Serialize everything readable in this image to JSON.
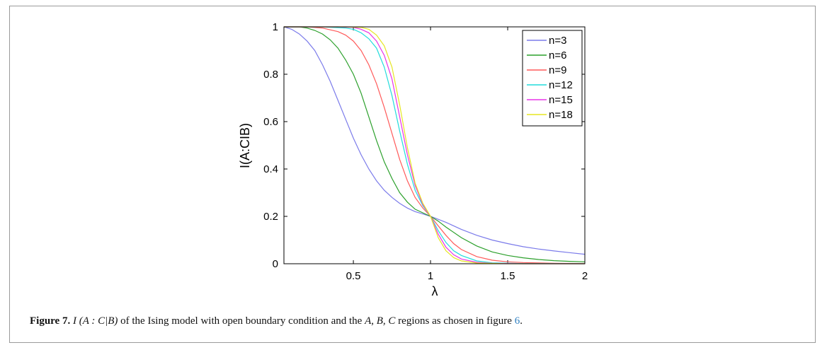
{
  "figure": {
    "caption_label": "Figure 7.",
    "caption_math": "I (A : C|B)",
    "caption_text": " of the Ising model with open boundary condition and the ",
    "caption_regions": "A, B, C",
    "caption_text2": " regions as chosen in figure ",
    "caption_ref": "6",
    "caption_end": "."
  },
  "chart_data": {
    "type": "line",
    "xlabel": "λ",
    "ylabel": "I(A:CIB)",
    "xlim": [
      0.05,
      2
    ],
    "ylim": [
      0,
      1
    ],
    "xticks": [
      0.5,
      1,
      1.5,
      2
    ],
    "xtick_labels": [
      "0.5",
      "1",
      "1.5",
      "2"
    ],
    "yticks": [
      0,
      0.2,
      0.4,
      0.6,
      0.8,
      1
    ],
    "ytick_labels": [
      "0",
      "0.2",
      "0.4",
      "0.6",
      "0.8",
      "1"
    ],
    "grid": false,
    "legend_position": "top-right",
    "series": [
      {
        "name": "n=3",
        "color": "#7b7bea",
        "x": [
          0.05,
          0.1,
          0.15,
          0.2,
          0.25,
          0.3,
          0.35,
          0.4,
          0.45,
          0.5,
          0.55,
          0.6,
          0.65,
          0.7,
          0.75,
          0.8,
          0.85,
          0.9,
          0.95,
          1.0,
          1.1,
          1.2,
          1.3,
          1.4,
          1.5,
          1.6,
          1.7,
          1.8,
          1.9,
          2.0
        ],
        "y": [
          1.0,
          0.99,
          0.97,
          0.94,
          0.9,
          0.84,
          0.77,
          0.69,
          0.61,
          0.53,
          0.46,
          0.4,
          0.35,
          0.31,
          0.28,
          0.255,
          0.235,
          0.22,
          0.21,
          0.2,
          0.175,
          0.145,
          0.12,
          0.1,
          0.085,
          0.072,
          0.062,
          0.054,
          0.047,
          0.04
        ]
      },
      {
        "name": "n=6",
        "color": "#2ca02c",
        "x": [
          0.05,
          0.1,
          0.15,
          0.2,
          0.25,
          0.3,
          0.35,
          0.4,
          0.45,
          0.5,
          0.55,
          0.6,
          0.65,
          0.7,
          0.75,
          0.8,
          0.85,
          0.9,
          0.95,
          1.0,
          1.05,
          1.1,
          1.2,
          1.3,
          1.4,
          1.5,
          1.6,
          1.7,
          1.8,
          1.9,
          2.0
        ],
        "y": [
          1.0,
          1.0,
          1.0,
          0.995,
          0.985,
          0.97,
          0.945,
          0.91,
          0.86,
          0.8,
          0.72,
          0.62,
          0.52,
          0.43,
          0.36,
          0.3,
          0.26,
          0.23,
          0.215,
          0.2,
          0.18,
          0.155,
          0.11,
          0.075,
          0.05,
          0.035,
          0.025,
          0.018,
          0.013,
          0.01,
          0.008
        ]
      },
      {
        "name": "n=9",
        "color": "#ff5a5a",
        "x": [
          0.05,
          0.2,
          0.3,
          0.4,
          0.45,
          0.5,
          0.55,
          0.6,
          0.65,
          0.7,
          0.75,
          0.8,
          0.85,
          0.9,
          0.95,
          1.0,
          1.05,
          1.1,
          1.15,
          1.2,
          1.3,
          1.4,
          1.5,
          1.6,
          1.8,
          2.0
        ],
        "y": [
          1.0,
          1.0,
          0.995,
          0.98,
          0.965,
          0.94,
          0.9,
          0.84,
          0.76,
          0.66,
          0.55,
          0.44,
          0.35,
          0.28,
          0.235,
          0.2,
          0.16,
          0.12,
          0.085,
          0.06,
          0.03,
          0.015,
          0.008,
          0.005,
          0.002,
          0.001
        ]
      },
      {
        "name": "n=12",
        "color": "#22dcdc",
        "x": [
          0.05,
          0.3,
          0.45,
          0.5,
          0.55,
          0.6,
          0.65,
          0.7,
          0.75,
          0.8,
          0.85,
          0.9,
          0.95,
          1.0,
          1.05,
          1.1,
          1.15,
          1.2,
          1.3,
          1.4,
          1.6,
          2.0
        ],
        "y": [
          1.0,
          1.0,
          0.995,
          0.99,
          0.975,
          0.95,
          0.91,
          0.83,
          0.71,
          0.56,
          0.42,
          0.31,
          0.245,
          0.2,
          0.14,
          0.09,
          0.055,
          0.035,
          0.012,
          0.004,
          0.001,
          0.0
        ]
      },
      {
        "name": "n=15",
        "color": "#e833e8",
        "x": [
          0.05,
          0.4,
          0.5,
          0.55,
          0.6,
          0.65,
          0.7,
          0.75,
          0.8,
          0.85,
          0.9,
          0.95,
          1.0,
          1.05,
          1.1,
          1.15,
          1.2,
          1.3,
          1.4,
          1.6,
          2.0
        ],
        "y": [
          1.0,
          1.0,
          0.998,
          0.99,
          0.975,
          0.94,
          0.88,
          0.78,
          0.62,
          0.46,
          0.33,
          0.25,
          0.2,
          0.125,
          0.07,
          0.038,
          0.02,
          0.006,
          0.002,
          0.0,
          0.0
        ]
      },
      {
        "name": "n=18",
        "color": "#e6e622",
        "x": [
          0.05,
          0.45,
          0.55,
          0.6,
          0.65,
          0.7,
          0.75,
          0.8,
          0.85,
          0.9,
          0.95,
          1.0,
          1.05,
          1.1,
          1.15,
          1.2,
          1.3,
          1.5,
          2.0
        ],
        "y": [
          1.0,
          1.0,
          0.998,
          0.99,
          0.965,
          0.92,
          0.83,
          0.67,
          0.49,
          0.34,
          0.255,
          0.2,
          0.11,
          0.055,
          0.026,
          0.012,
          0.003,
          0.0,
          0.0
        ]
      }
    ]
  }
}
